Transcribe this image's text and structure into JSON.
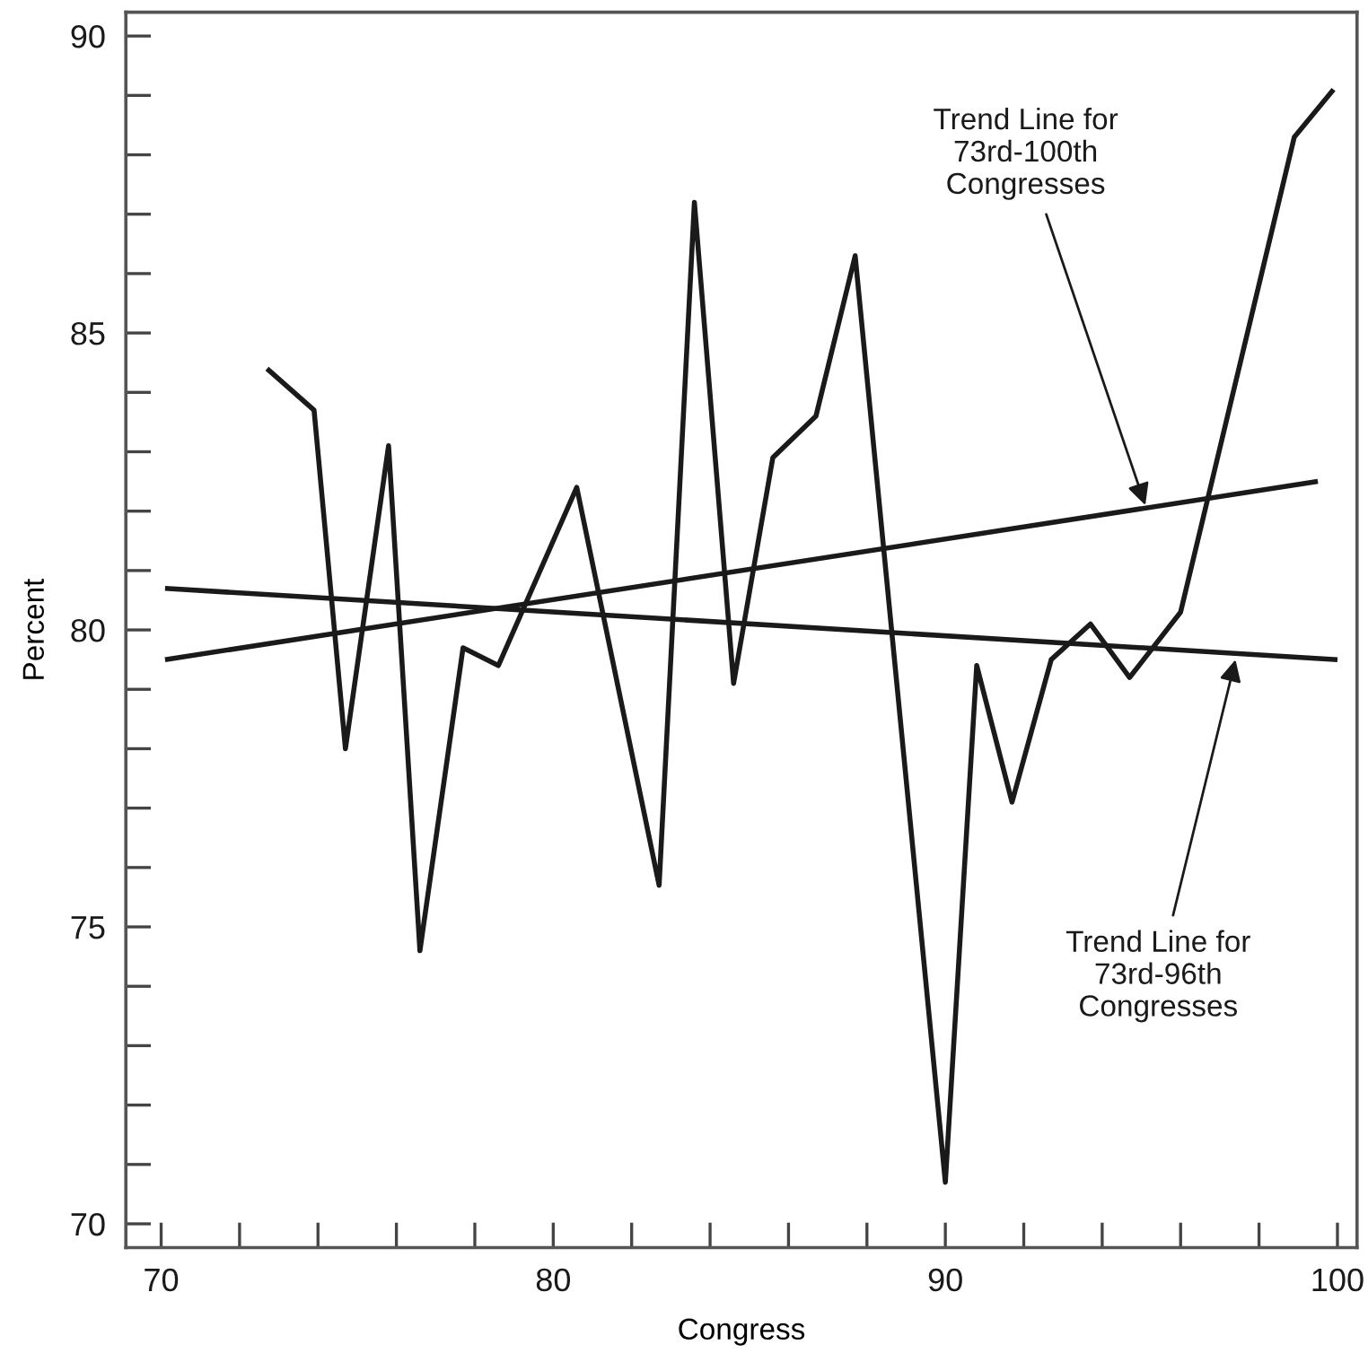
{
  "chart_data": {
    "type": "line",
    "xlabel": "Congress",
    "ylabel": "Percent",
    "xlim": [
      69.1,
      100.5
    ],
    "ylim": [
      69.6,
      90.4
    ],
    "xticks": [
      70,
      {
        "value": 72,
        "label": null
      },
      {
        "value": 74,
        "label": null
      },
      {
        "value": 76,
        "label": null
      },
      {
        "value": 78,
        "label": null
      },
      80,
      {
        "value": 82,
        "label": null
      },
      {
        "value": 84,
        "label": null
      },
      {
        "value": 86,
        "label": null
      },
      {
        "value": 88,
        "label": null
      },
      90,
      {
        "value": 92,
        "label": null
      },
      {
        "value": 94,
        "label": null
      },
      {
        "value": 96,
        "label": null
      },
      {
        "value": 98,
        "label": null
      },
      100
    ],
    "yticks": [
      70,
      {
        "value": 71,
        "label": null
      },
      {
        "value": 72,
        "label": null
      },
      {
        "value": 73,
        "label": null
      },
      {
        "value": 74,
        "label": null
      },
      75,
      {
        "value": 76,
        "label": null
      },
      {
        "value": 77,
        "label": null
      },
      {
        "value": 78,
        "label": null
      },
      {
        "value": 79,
        "label": null
      },
      80,
      {
        "value": 81,
        "label": null
      },
      {
        "value": 82,
        "label": null
      },
      {
        "value": 83,
        "label": null
      },
      {
        "value": 84,
        "label": null
      },
      85,
      {
        "value": 86,
        "label": null
      },
      {
        "value": 87,
        "label": null
      },
      {
        "value": 88,
        "label": null
      },
      {
        "value": 89,
        "label": null
      },
      90
    ],
    "grid": false,
    "legend": false,
    "marker": "none",
    "line_style": "solid",
    "series": [
      {
        "color": "#1a1a1a",
        "x": [
          72.7,
          73.9,
          74.7,
          75.8,
          76.6,
          77.7,
          78.6,
          80.6,
          82.7,
          83.6,
          84.6,
          85.6,
          86.7,
          87.7,
          90.0,
          90.8,
          91.7,
          92.7,
          93.7,
          94.7,
          96.0,
          98.9,
          99.9
        ],
        "values": [
          84.4,
          83.7,
          78.0,
          83.1,
          74.6,
          79.7,
          79.4,
          82.4,
          75.7,
          87.2,
          79.1,
          82.9,
          83.6,
          86.3,
          70.7,
          79.4,
          77.1,
          79.5,
          80.1,
          79.2,
          80.3,
          88.3,
          89.1
        ]
      },
      {
        "type": "line",
        "color": "#1a1a1a",
        "x": [
          70.1,
          99.5
        ],
        "values": [
          79.5,
          82.5
        ]
      },
      {
        "type": "line",
        "color": "#1a1a1a",
        "x": [
          70.1,
          100.0
        ],
        "values": [
          80.7,
          79.5
        ]
      }
    ],
    "annotations": [
      {
        "text": "Trend Line for\n73rd-100th\nCongresses",
        "x": 95.1,
        "y": 82.1
      },
      {
        "text": "Trend Line for\n73rd-96th\nCongresses",
        "x": 97.4,
        "y": 79.5
      }
    ]
  }
}
